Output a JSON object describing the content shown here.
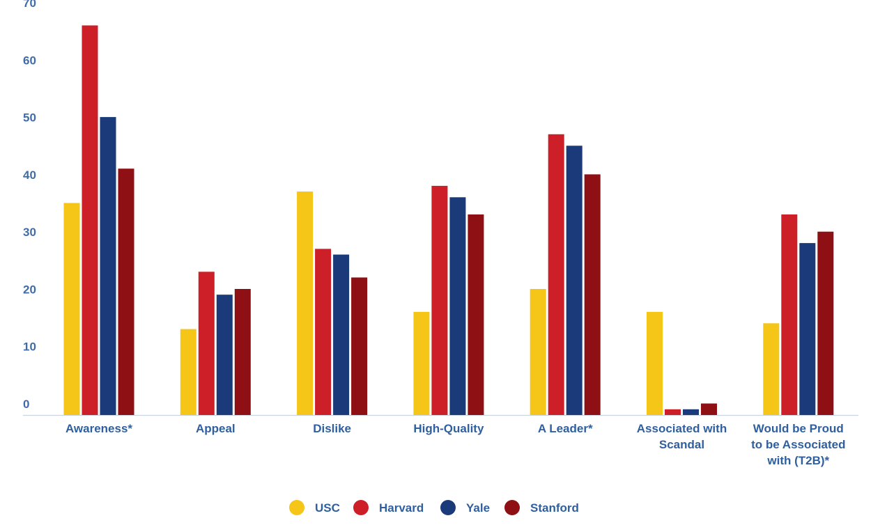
{
  "chart_data": {
    "type": "bar",
    "categories": [
      [
        "Awareness*"
      ],
      [
        "Appeal"
      ],
      [
        "Dislike"
      ],
      [
        "High-Quality"
      ],
      [
        "A Leader*"
      ],
      [
        "Associated with",
        "Scandal"
      ],
      [
        "Would be Proud",
        "to be Associated",
        "with (T2B)*"
      ]
    ],
    "series": [
      {
        "name": "USC",
        "color": "#f5c518",
        "values": [
          37,
          15,
          39,
          18,
          22,
          18,
          16
        ]
      },
      {
        "name": "Harvard",
        "color": "#cc1f27",
        "values": [
          68,
          25,
          29,
          40,
          49,
          1,
          35
        ]
      },
      {
        "name": "Yale",
        "color": "#1a3a7a",
        "values": [
          52,
          21,
          28,
          38,
          47,
          1,
          30
        ]
      },
      {
        "name": "Stanford",
        "color": "#8e0f14",
        "values": [
          43,
          22,
          24,
          35,
          42,
          2,
          32
        ]
      }
    ],
    "ylim": [
      0,
      70
    ],
    "yticks": [
      "0",
      "10",
      "20",
      "30",
      "40",
      "50",
      "60",
      "70"
    ],
    "legend_position": "bottom",
    "grid": false
  }
}
